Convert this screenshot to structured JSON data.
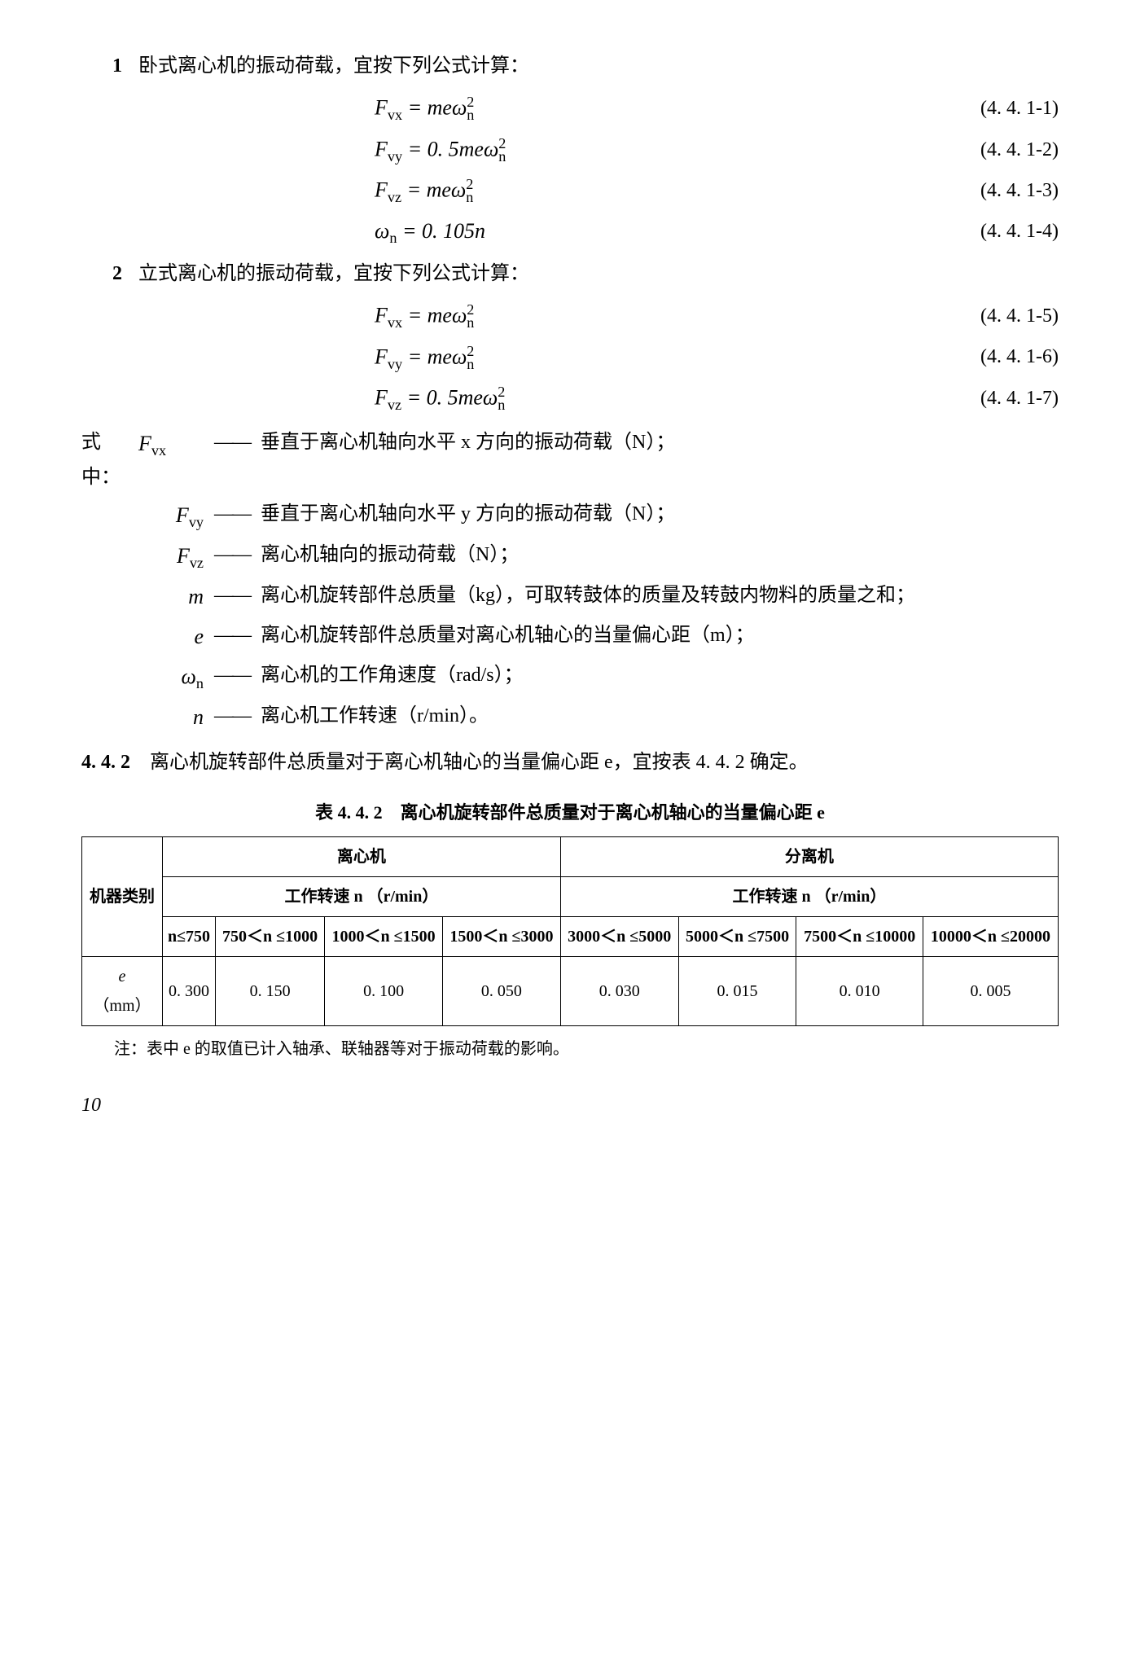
{
  "item1": {
    "num": "1",
    "text": "卧式离心机的振动荷载，宜按下列公式计算："
  },
  "eq": {
    "e1": {
      "lhs": "F",
      "lhs_sub": "vx",
      "rhs": " = meω",
      "rhs_sub": "n",
      "rhs_sup": "2",
      "ref": "(4. 4. 1-1)"
    },
    "e2": {
      "lhs": "F",
      "lhs_sub": "vy",
      "rhs": " = 0. 5meω",
      "rhs_sub": "n",
      "rhs_sup": "2",
      "ref": "(4. 4. 1-2)"
    },
    "e3": {
      "lhs": "F",
      "lhs_sub": "vz",
      "rhs": " = meω",
      "rhs_sub": "n",
      "rhs_sup": "2",
      "ref": "(4. 4. 1-3)"
    },
    "e4": {
      "lhs": "ω",
      "lhs_sub": "n",
      "rhs": " = 0. 105n",
      "ref": "(4. 4. 1-4)"
    },
    "e5": {
      "lhs": "F",
      "lhs_sub": "vx",
      "rhs": " = meω",
      "rhs_sub": "n",
      "rhs_sup": "2",
      "ref": "(4. 4. 1-5)"
    },
    "e6": {
      "lhs": "F",
      "lhs_sub": "vy",
      "rhs": " = meω",
      "rhs_sub": "n",
      "rhs_sup": "2",
      "ref": "(4. 4. 1-6)"
    },
    "e7": {
      "lhs": "F",
      "lhs_sub": "vz",
      "rhs": " = 0. 5meω",
      "rhs_sub": "n",
      "rhs_sup": "2",
      "ref": "(4. 4. 1-7)"
    }
  },
  "item2": {
    "num": "2",
    "text": "立式离心机的振动荷载，宜按下列公式计算："
  },
  "where_label": "式中：",
  "where": [
    {
      "sym": "F",
      "sub": "vx",
      "desc": "垂直于离心机轴向水平 x 方向的振动荷载（N）；"
    },
    {
      "sym": "F",
      "sub": "vy",
      "desc": "垂直于离心机轴向水平 y 方向的振动荷载（N）；"
    },
    {
      "sym": "F",
      "sub": "vz",
      "desc": "离心机轴向的振动荷载（N）；"
    },
    {
      "sym": "m",
      "sub": "",
      "desc": "离心机旋转部件总质量（kg），可取转鼓体的质量及转鼓内物料的质量之和；"
    },
    {
      "sym": "e",
      "sub": "",
      "desc": "离心机旋转部件总质量对离心机轴心的当量偏心距（m）；"
    },
    {
      "sym": "ω",
      "sub": "n",
      "desc": "离心机的工作角速度（rad/s）；"
    },
    {
      "sym": "n",
      "sub": "",
      "desc": "离心机工作转速（r/min）。"
    }
  ],
  "p442": {
    "num": "4. 4. 2",
    "text": "　离心机旋转部件总质量对于离心机轴心的当量偏心距 e，宜按表 4. 4. 2 确定。"
  },
  "table": {
    "title": "表 4. 4. 2　离心机旋转部件总质量对于离心机轴心的当量偏心距 e",
    "col_machine": "机器类别",
    "grp1": "离心机",
    "grp2": "分离机",
    "speed_label": "工作转速 n （r/min）",
    "ranges": [
      "n≤750",
      "750＜n ≤1000",
      "1000＜n ≤1500",
      "1500＜n ≤3000",
      "3000＜n ≤5000",
      "5000＜n ≤7500",
      "7500＜n ≤10000",
      "10000＜n ≤20000"
    ],
    "row_label": "e （mm）",
    "values": [
      "0. 300",
      "0. 150",
      "0. 100",
      "0. 050",
      "0. 030",
      "0. 015",
      "0. 010",
      "0. 005"
    ]
  },
  "note": "注：表中 e 的取值已计入轴承、联轴器等对于振动荷载的影响。",
  "pagenum": "10",
  "dash": "——"
}
